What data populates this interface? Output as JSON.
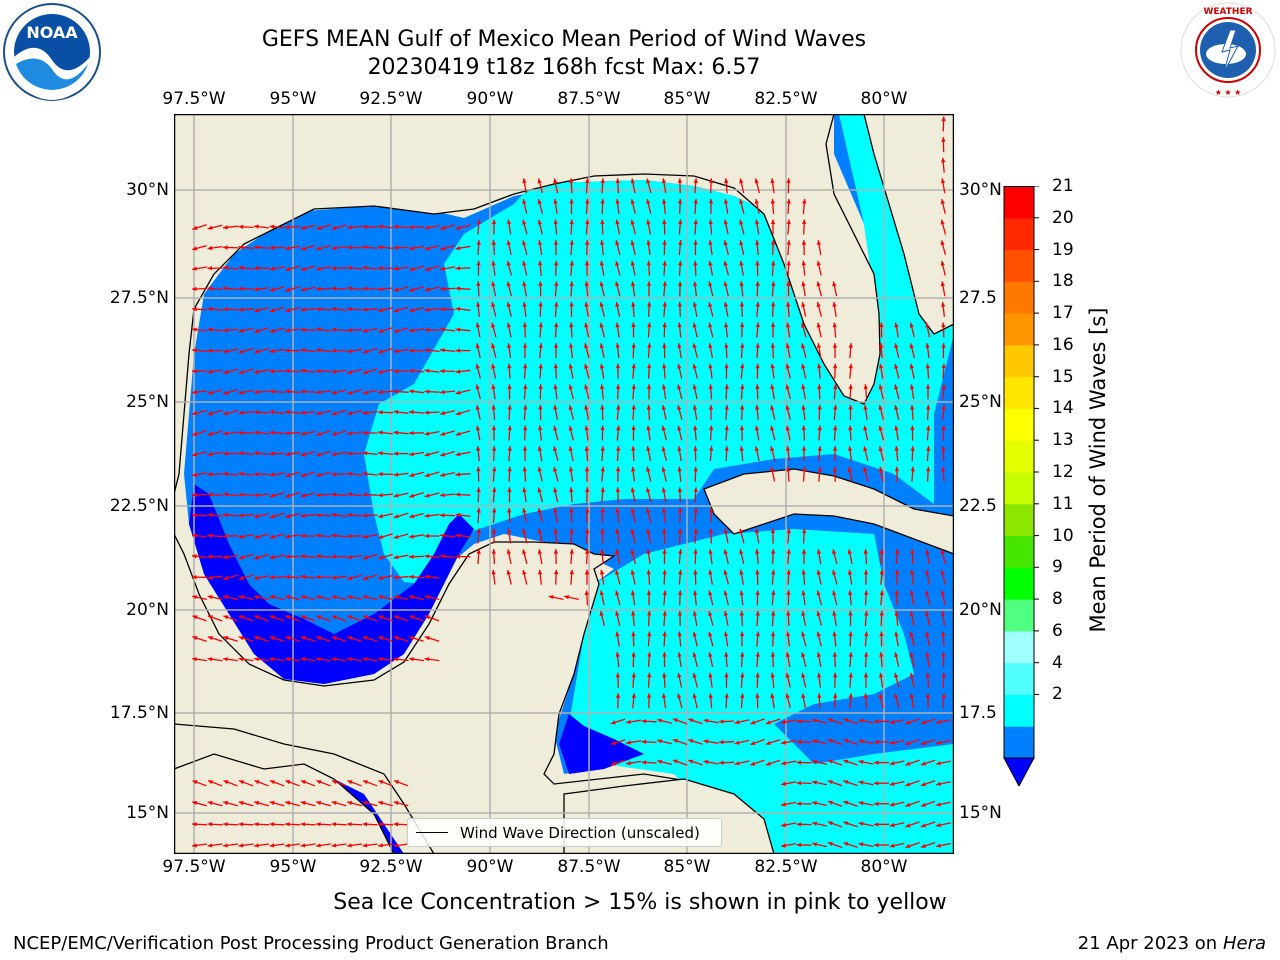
{
  "title": {
    "line1": "GEFS MEAN Gulf of Mexico Mean Period of Wind Waves",
    "line2": "20230419 t18z 168h fcst   Max: 6.57"
  },
  "logos": {
    "left": "NOAA",
    "right": "NATIONAL WEATHER SERVICE"
  },
  "map": {
    "lon_labels": [
      "97.5°W",
      "95°W",
      "92.5°W",
      "90°W",
      "87.5°W",
      "85°W",
      "82.5°W",
      "80°W"
    ],
    "lat_labels_left": [
      "30°N",
      "27.5°N",
      "25°N",
      "22.5°N",
      "20°N",
      "17.5°N",
      "15°N"
    ],
    "lat_labels_right": [
      "30°N",
      "27.5",
      "25°N",
      "22.5",
      "20°N",
      "17.5",
      "15°N"
    ],
    "legend_label": "Wind Wave Direction (unscaled)",
    "colors": {
      "land": "#efedda",
      "ocean_2_4": "#0080ff",
      "ocean_4_6": "#00ffff",
      "ocean_lt2": "#0000ff",
      "arrow": "#ff0000",
      "grid": "#b0b0b0"
    }
  },
  "colorbar": {
    "label": "Mean Period of Wind Waves [s]",
    "ticks": [
      "21",
      "20",
      "19",
      "18",
      "17",
      "16",
      "15",
      "14",
      "13",
      "12",
      "11",
      "10",
      "9",
      "8",
      "6",
      "4",
      "2"
    ],
    "colors": [
      "#0000ff",
      "#0080ff",
      "#00ffff",
      "#52ffff",
      "#a0ffff",
      "#50ff80",
      "#00ff00",
      "#46e600",
      "#8ce600",
      "#c8ff00",
      "#e6ff00",
      "#ffff00",
      "#ffe600",
      "#ffc800",
      "#ff9600",
      "#ff7800",
      "#ff5000",
      "#ff2800",
      "#ff0000"
    ]
  },
  "footer": {
    "note": "Sea Ice Concentration > 15% is shown in pink to yellow",
    "credit": "NCEP/EMC/Verification Post Processing Product Generation Branch",
    "date": "21 Apr 2023 on",
    "machine": "Hera"
  }
}
